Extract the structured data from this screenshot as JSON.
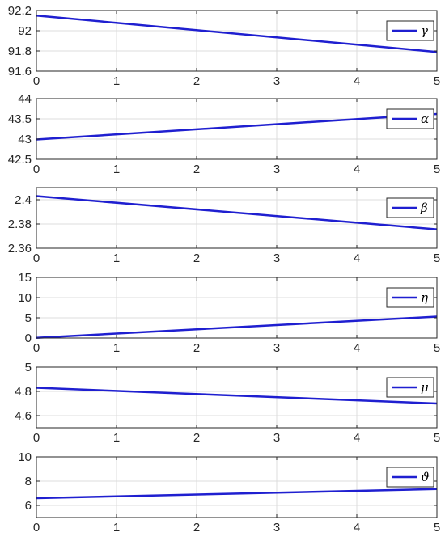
{
  "chart_data": [
    {
      "type": "line",
      "legend": "γ",
      "legend_position": "top-right",
      "grid": true,
      "xlim": [
        0,
        5
      ],
      "ylim": [
        91.6,
        92.2
      ],
      "xticks": [
        "0",
        "1",
        "2",
        "3",
        "4",
        "5"
      ],
      "yticks": [
        "91.6",
        "91.8",
        "92",
        "92.2"
      ],
      "series": [
        {
          "name": "γ",
          "color": "#1f1fd0",
          "x": [
            0,
            5
          ],
          "y": [
            92.15,
            91.79
          ]
        }
      ]
    },
    {
      "type": "line",
      "legend": "α",
      "legend_position": "top-right",
      "grid": true,
      "xlim": [
        0,
        5
      ],
      "ylim": [
        42.5,
        44
      ],
      "xticks": [
        "0",
        "1",
        "2",
        "3",
        "4",
        "5"
      ],
      "yticks": [
        "42.5",
        "43",
        "43.5",
        "44"
      ],
      "series": [
        {
          "name": "α",
          "color": "#1f1fd0",
          "x": [
            0,
            5
          ],
          "y": [
            42.99,
            43.62
          ]
        }
      ]
    },
    {
      "type": "line",
      "legend": "β",
      "legend_position": "top-right",
      "grid": true,
      "xlim": [
        0,
        5
      ],
      "ylim": [
        2.36,
        2.41
      ],
      "xticks": [
        "0",
        "1",
        "2",
        "3",
        "4",
        "5"
      ],
      "yticks": [
        "2.36",
        "2.38",
        "2.4"
      ],
      "series": [
        {
          "name": "β",
          "color": "#1f1fd0",
          "x": [
            0,
            5
          ],
          "y": [
            2.403,
            2.3756
          ]
        }
      ]
    },
    {
      "type": "line",
      "legend": "η",
      "legend_position": "top-right",
      "grid": true,
      "xlim": [
        0,
        5
      ],
      "ylim": [
        0,
        15
      ],
      "xticks": [
        "0",
        "1",
        "2",
        "3",
        "4",
        "5"
      ],
      "yticks": [
        "0",
        "5",
        "10",
        "15"
      ],
      "series": [
        {
          "name": "η",
          "color": "#1f1fd0",
          "x": [
            0,
            5
          ],
          "y": [
            0.05,
            5.3
          ]
        }
      ]
    },
    {
      "type": "line",
      "legend": "μ",
      "legend_position": "top-right",
      "grid": true,
      "xlim": [
        0,
        5
      ],
      "ylim": [
        4.5,
        5
      ],
      "xticks": [
        "0",
        "1",
        "2",
        "3",
        "4",
        "5"
      ],
      "yticks": [
        "4.6",
        "4.8",
        "5"
      ],
      "series": [
        {
          "name": "μ",
          "color": "#1f1fd0",
          "x": [
            0,
            5
          ],
          "y": [
            4.83,
            4.7
          ]
        }
      ]
    },
    {
      "type": "line",
      "legend": "ϑ",
      "legend_position": "top-right",
      "grid": true,
      "xlim": [
        0,
        5
      ],
      "ylim": [
        5,
        10
      ],
      "xticks": [
        "0",
        "1",
        "2",
        "3",
        "4",
        "5"
      ],
      "yticks": [
        "6",
        "8",
        "10"
      ],
      "series": [
        {
          "name": "ϑ",
          "color": "#1f1fd0",
          "x": [
            0,
            5
          ],
          "y": [
            6.6,
            7.35
          ]
        }
      ]
    }
  ]
}
